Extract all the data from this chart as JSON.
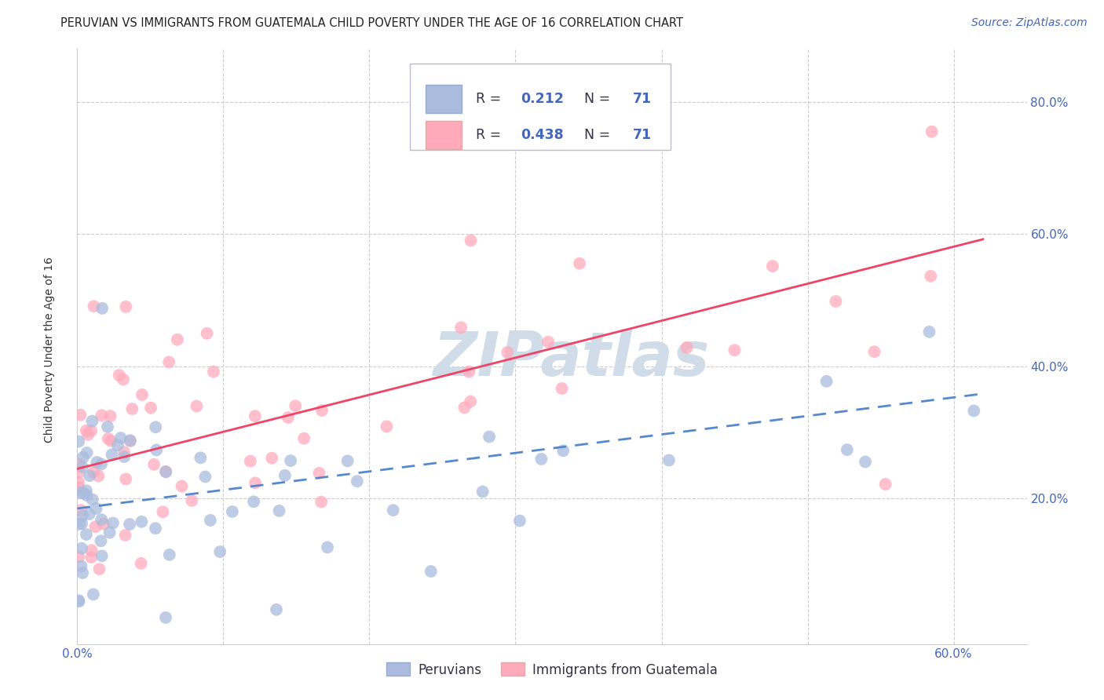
{
  "title": "PERUVIAN VS IMMIGRANTS FROM GUATEMALA CHILD POVERTY UNDER THE AGE OF 16 CORRELATION CHART",
  "source": "Source: ZipAtlas.com",
  "ylabel": "Child Poverty Under the Age of 16",
  "xlim": [
    0.0,
    0.65
  ],
  "ylim": [
    -0.02,
    0.88
  ],
  "yticks": [
    0.2,
    0.4,
    0.6,
    0.8
  ],
  "ytick_labels": [
    "20.0%",
    "40.0%",
    "60.0%",
    "80.0%"
  ],
  "background_color": "#ffffff",
  "grid_color": "#cccccc",
  "watermark_text": "ZIPatlas",
  "watermark_color": "#d0dce8",
  "blue_color": "#aabbdd",
  "pink_color": "#ffaabb",
  "blue_line_color": "#5588cc",
  "pink_line_color": "#ee4466",
  "title_fontsize": 10.5,
  "axis_label_fontsize": 10,
  "tick_fontsize": 11,
  "source_fontsize": 10,
  "legend_text_color": "#333344",
  "legend_value_color": "#4466bb",
  "tick_color": "#4466bb"
}
